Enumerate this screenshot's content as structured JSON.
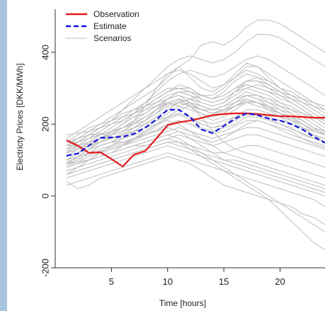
{
  "chart_data": {
    "type": "line",
    "title": "",
    "xlabel": "Time [hours]",
    "ylabel": "Electricty Prices [DKK/MWh]",
    "xlim": [
      0,
      24
    ],
    "ylim": [
      -200,
      520
    ],
    "x_ticks": [
      5,
      10,
      15,
      20
    ],
    "y_ticks": [
      -200,
      0,
      200,
      400
    ],
    "grid": false,
    "legend_position": "top-left",
    "legend": [
      {
        "label": "Observation",
        "color": "#e31a1c",
        "style": "solid"
      },
      {
        "label": "Estimate",
        "color": "#1010e0",
        "style": "dashed"
      },
      {
        "label": "Scenarios",
        "color": "#bdbdbd",
        "style": "thin"
      }
    ],
    "x": [
      1,
      2,
      3,
      4,
      5,
      6,
      7,
      8,
      9,
      10,
      11,
      12,
      13,
      14,
      15,
      16,
      17,
      18,
      19,
      20,
      21,
      22,
      23,
      24
    ],
    "series": [
      {
        "name": "Observation",
        "color": "#e31a1c",
        "values": [
          155,
          140,
          120,
          122,
          103,
          82,
          115,
          125,
          160,
          197,
          205,
          210,
          217,
          225,
          228,
          230,
          230,
          228,
          225,
          222,
          222,
          220,
          218,
          218
        ]
      },
      {
        "name": "Estimate",
        "color": "#1010e0",
        "values": [
          112,
          118,
          140,
          162,
          163,
          165,
          173,
          190,
          213,
          240,
          240,
          220,
          185,
          175,
          195,
          215,
          230,
          225,
          215,
          210,
          200,
          185,
          165,
          148
        ]
      }
    ],
    "scenarios": [
      [
        130,
        150,
        170,
        175,
        160,
        175,
        210,
        250,
        300,
        340,
        360,
        330,
        300,
        290,
        310,
        340,
        370,
        360,
        330,
        300,
        290,
        270,
        250,
        230
      ],
      [
        120,
        140,
        160,
        180,
        200,
        220,
        230,
        250,
        270,
        290,
        310,
        300,
        280,
        270,
        290,
        320,
        340,
        330,
        310,
        290,
        270,
        250,
        230,
        210
      ],
      [
        150,
        170,
        190,
        200,
        210,
        220,
        240,
        260,
        280,
        300,
        300,
        290,
        270,
        260,
        270,
        290,
        310,
        300,
        290,
        270,
        260,
        240,
        220,
        200
      ],
      [
        100,
        110,
        130,
        150,
        170,
        180,
        200,
        220,
        240,
        260,
        270,
        260,
        240,
        230,
        240,
        260,
        280,
        280,
        270,
        260,
        240,
        220,
        200,
        180
      ],
      [
        140,
        150,
        160,
        170,
        180,
        200,
        220,
        240,
        250,
        260,
        250,
        240,
        230,
        220,
        230,
        250,
        270,
        260,
        240,
        230,
        210,
        200,
        180,
        170
      ],
      [
        90,
        100,
        120,
        140,
        150,
        160,
        170,
        180,
        200,
        220,
        230,
        220,
        200,
        190,
        200,
        220,
        240,
        240,
        230,
        220,
        200,
        190,
        170,
        160
      ],
      [
        110,
        120,
        130,
        140,
        150,
        150,
        160,
        170,
        180,
        200,
        210,
        200,
        190,
        180,
        190,
        200,
        220,
        220,
        210,
        200,
        190,
        170,
        160,
        150
      ],
      [
        80,
        90,
        100,
        110,
        120,
        130,
        140,
        150,
        160,
        170,
        180,
        170,
        160,
        150,
        160,
        180,
        200,
        210,
        200,
        190,
        180,
        160,
        150,
        140
      ],
      [
        160,
        180,
        200,
        220,
        240,
        260,
        280,
        300,
        320,
        340,
        350,
        340,
        320,
        300,
        310,
        330,
        350,
        340,
        320,
        300,
        280,
        260,
        240,
        220
      ],
      [
        70,
        80,
        90,
        100,
        110,
        120,
        130,
        140,
        150,
        160,
        170,
        160,
        150,
        140,
        150,
        160,
        170,
        170,
        160,
        150,
        140,
        130,
        120,
        110
      ],
      [
        130,
        140,
        150,
        160,
        170,
        180,
        190,
        200,
        210,
        220,
        230,
        220,
        210,
        200,
        210,
        220,
        230,
        230,
        220,
        210,
        200,
        190,
        180,
        170
      ],
      [
        100,
        110,
        120,
        120,
        130,
        140,
        150,
        160,
        170,
        180,
        190,
        180,
        170,
        160,
        170,
        180,
        190,
        190,
        180,
        170,
        160,
        150,
        140,
        130
      ],
      [
        120,
        130,
        150,
        170,
        190,
        210,
        230,
        250,
        270,
        290,
        300,
        300,
        280,
        270,
        280,
        300,
        320,
        320,
        300,
        280,
        260,
        240,
        220,
        200
      ],
      [
        140,
        160,
        180,
        190,
        200,
        210,
        230,
        240,
        260,
        280,
        290,
        280,
        270,
        260,
        270,
        290,
        300,
        290,
        280,
        260,
        250,
        230,
        210,
        190
      ],
      [
        60,
        70,
        80,
        90,
        100,
        110,
        120,
        130,
        140,
        150,
        150,
        140,
        130,
        120,
        120,
        130,
        140,
        140,
        130,
        120,
        110,
        100,
        90,
        80
      ],
      [
        150,
        160,
        170,
        170,
        180,
        190,
        200,
        210,
        230,
        250,
        260,
        250,
        240,
        240,
        250,
        270,
        280,
        270,
        260,
        250,
        240,
        230,
        220,
        210
      ],
      [
        110,
        130,
        150,
        160,
        160,
        170,
        180,
        190,
        210,
        230,
        250,
        260,
        250,
        240,
        250,
        260,
        270,
        260,
        250,
        230,
        220,
        210,
        190,
        180
      ],
      [
        95,
        105,
        115,
        125,
        135,
        145,
        160,
        175,
        195,
        215,
        225,
        215,
        200,
        190,
        195,
        210,
        225,
        225,
        215,
        200,
        185,
        175,
        160,
        150
      ],
      [
        125,
        135,
        145,
        160,
        175,
        190,
        205,
        220,
        240,
        255,
        265,
        255,
        240,
        230,
        235,
        250,
        265,
        260,
        245,
        230,
        215,
        200,
        185,
        175
      ],
      [
        85,
        95,
        110,
        120,
        130,
        140,
        155,
        170,
        185,
        200,
        210,
        200,
        185,
        175,
        180,
        195,
        210,
        210,
        200,
        185,
        170,
        160,
        145,
        135
      ],
      [
        170,
        175,
        180,
        190,
        200,
        210,
        230,
        250,
        270,
        290,
        300,
        290,
        280,
        270,
        280,
        300,
        310,
        300,
        290,
        280,
        270,
        260,
        250,
        240
      ],
      [
        60,
        80,
        100,
        120,
        140,
        160,
        180,
        200,
        220,
        240,
        260,
        270,
        260,
        250,
        260,
        280,
        300,
        310,
        300,
        290,
        280,
        270,
        260,
        250
      ],
      [
        120,
        130,
        140,
        150,
        160,
        170,
        190,
        210,
        240,
        270,
        290,
        280,
        260,
        250,
        260,
        290,
        320,
        330,
        320,
        300,
        280,
        260,
        240,
        220
      ],
      [
        100,
        110,
        130,
        160,
        180,
        200,
        220,
        230,
        250,
        260,
        270,
        260,
        250,
        240,
        240,
        250,
        260,
        250,
        240,
        220,
        210,
        190,
        170,
        160
      ],
      [
        140,
        140,
        150,
        160,
        170,
        180,
        190,
        200,
        220,
        240,
        260,
        270,
        280,
        270,
        280,
        300,
        320,
        320,
        310,
        290,
        270,
        250,
        230,
        210
      ],
      [
        130,
        150,
        170,
        190,
        210,
        230,
        240,
        250,
        260,
        270,
        280,
        260,
        240,
        230,
        240,
        260,
        280,
        270,
        250,
        230,
        210,
        190,
        170,
        150
      ],
      [
        90,
        110,
        130,
        150,
        170,
        190,
        210,
        230,
        250,
        270,
        290,
        290,
        280,
        280,
        300,
        330,
        360,
        360,
        340,
        320,
        300,
        280,
        260,
        240
      ],
      [
        110,
        120,
        130,
        140,
        150,
        170,
        190,
        210,
        230,
        250,
        260,
        250,
        230,
        210,
        220,
        240,
        260,
        260,
        250,
        240,
        230,
        210,
        190,
        170
      ],
      [
        150,
        150,
        160,
        170,
        180,
        190,
        210,
        230,
        250,
        270,
        280,
        270,
        250,
        240,
        250,
        270,
        290,
        280,
        260,
        240,
        220,
        200,
        180,
        170
      ],
      [
        80,
        90,
        100,
        110,
        120,
        140,
        160,
        180,
        200,
        220,
        240,
        250,
        240,
        230,
        240,
        260,
        280,
        280,
        270,
        250,
        230,
        210,
        190,
        170
      ],
      [
        100,
        120,
        140,
        160,
        180,
        200,
        230,
        260,
        290,
        320,
        340,
        350,
        340,
        330,
        340,
        360,
        380,
        390,
        380,
        360,
        340,
        320,
        300,
        280
      ],
      [
        140,
        160,
        180,
        200,
        220,
        240,
        260,
        280,
        300,
        330,
        360,
        380,
        420,
        430,
        420,
        440,
        470,
        490,
        490,
        480,
        460,
        440,
        420,
        400
      ],
      [
        130,
        150,
        170,
        190,
        210,
        240,
        270,
        300,
        330,
        360,
        380,
        390,
        380,
        370,
        380,
        400,
        430,
        450,
        450,
        440,
        420,
        400,
        380,
        360
      ],
      [
        120,
        130,
        140,
        150,
        160,
        170,
        190,
        210,
        230,
        260,
        270,
        250,
        220,
        180,
        150,
        130,
        120,
        110,
        100,
        90,
        80,
        70,
        60,
        50
      ],
      [
        100,
        110,
        120,
        130,
        140,
        150,
        160,
        170,
        180,
        190,
        180,
        160,
        140,
        120,
        100,
        90,
        80,
        70,
        60,
        50,
        40,
        30,
        20,
        10
      ],
      [
        90,
        95,
        100,
        110,
        120,
        130,
        140,
        150,
        160,
        170,
        160,
        140,
        120,
        100,
        80,
        60,
        40,
        20,
        0,
        -20,
        -40,
        -60,
        -80,
        -100
      ],
      [
        80,
        90,
        100,
        110,
        120,
        130,
        140,
        140,
        150,
        160,
        150,
        130,
        110,
        90,
        70,
        50,
        30,
        10,
        -10,
        -40,
        -70,
        -100,
        -130,
        -150
      ],
      [
        120,
        130,
        140,
        150,
        160,
        170,
        180,
        190,
        200,
        210,
        200,
        180,
        160,
        140,
        120,
        110,
        100,
        90,
        80,
        70,
        60,
        50,
        40,
        30
      ],
      [
        40,
        20,
        30,
        50,
        60,
        70,
        80,
        90,
        100,
        110,
        100,
        90,
        70,
        50,
        30,
        20,
        10,
        0,
        -10,
        -20,
        -30,
        -50,
        -60,
        -80
      ],
      [
        30,
        40,
        50,
        60,
        70,
        80,
        90,
        100,
        110,
        120,
        110,
        100,
        90,
        80,
        70,
        60,
        50,
        40,
        30,
        20,
        10,
        0,
        -10,
        -30
      ],
      [
        50,
        60,
        70,
        80,
        90,
        100,
        110,
        120,
        130,
        140,
        130,
        120,
        110,
        100,
        90,
        80,
        70,
        60,
        50,
        40,
        30,
        20,
        10,
        0
      ],
      [
        60,
        70,
        80,
        90,
        100,
        110,
        120,
        130,
        140,
        150,
        140,
        130,
        120,
        110,
        100,
        100,
        90,
        80,
        70,
        60,
        50,
        40,
        30,
        20
      ]
    ]
  }
}
